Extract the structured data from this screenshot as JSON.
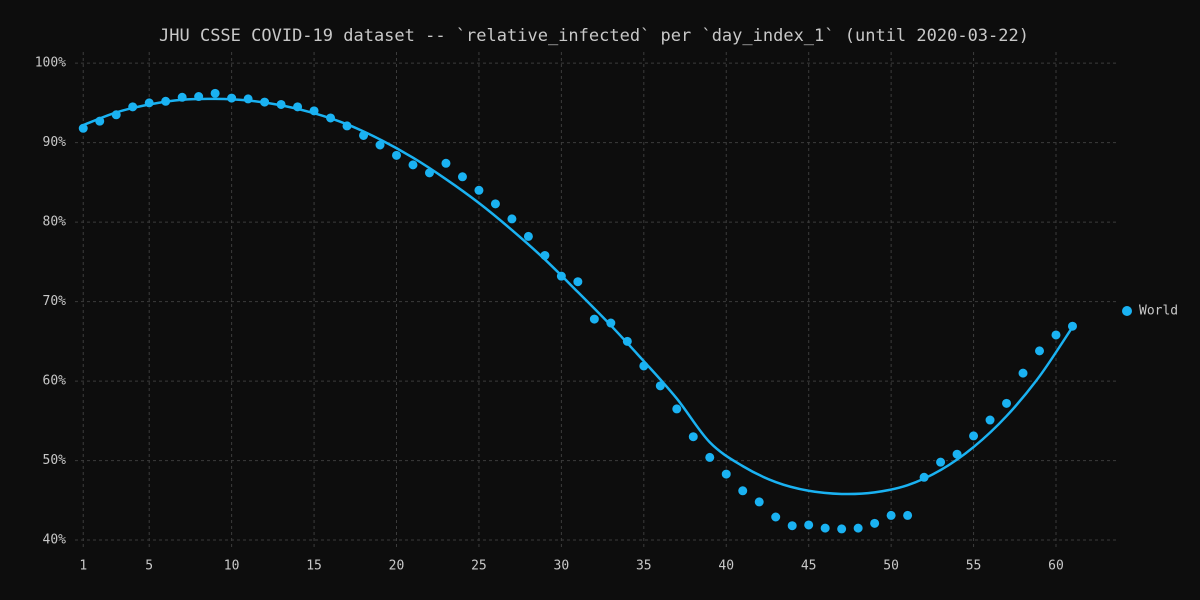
{
  "chart_data": {
    "type": "scatter",
    "title": "JHU CSSE COVID-19 dataset -- `relative_infected` per `day_index_1` (until 2020-03-22)",
    "xlim": [
      0.5,
      63.7
    ],
    "ylim": [
      39,
      101.4
    ],
    "xticks": [
      1,
      5,
      10,
      15,
      20,
      25,
      30,
      35,
      40,
      45,
      50,
      55,
      60
    ],
    "yticks": [
      {
        "value": 40,
        "label": "40%"
      },
      {
        "value": 50,
        "label": "50%"
      },
      {
        "value": 60,
        "label": "60%"
      },
      {
        "value": 70,
        "label": "70%"
      },
      {
        "value": 80,
        "label": "80%"
      },
      {
        "value": 90,
        "label": "90%"
      },
      {
        "value": 100,
        "label": "100%"
      }
    ],
    "grid": true,
    "legend": "right",
    "series": [
      {
        "name": "World",
        "color": "#1ab2f2",
        "x": [
          1,
          2,
          3,
          4,
          5,
          6,
          7,
          8,
          9,
          10,
          11,
          12,
          13,
          14,
          15,
          16,
          17,
          18,
          19,
          20,
          21,
          22,
          23,
          24,
          25,
          26,
          27,
          28,
          29,
          30,
          31,
          32,
          33,
          34,
          35,
          36,
          37,
          38,
          39,
          40,
          41,
          42,
          43,
          44,
          45,
          46,
          47,
          48,
          49,
          50,
          51,
          52,
          53,
          54,
          55,
          56,
          57,
          58,
          59,
          60,
          61
        ],
        "values": [
          91.8,
          92.7,
          93.5,
          94.5,
          95.0,
          95.2,
          95.7,
          95.8,
          96.2,
          95.6,
          95.5,
          95.1,
          94.8,
          94.5,
          94.0,
          93.1,
          92.1,
          90.9,
          89.7,
          88.4,
          87.2,
          86.2,
          87.4,
          85.7,
          84.0,
          82.3,
          80.4,
          78.2,
          75.8,
          73.2,
          72.5,
          67.8,
          67.3,
          65.0,
          61.9,
          59.4,
          56.5,
          53.0,
          50.4,
          48.3,
          46.2,
          44.8,
          42.9,
          41.8,
          41.9,
          41.5,
          41.4,
          41.5,
          42.1,
          43.1,
          43.1,
          47.9,
          49.8,
          50.8,
          53.1,
          55.1,
          57.2,
          61.0,
          63.8,
          65.8,
          66.9
        ]
      },
      {
        "type": "line",
        "color": "#1ab2f2",
        "x": [
          1,
          3,
          5,
          7,
          9,
          11,
          13,
          15,
          17,
          19,
          21,
          23,
          25,
          27,
          29,
          31,
          33,
          35,
          37,
          39,
          41,
          43,
          45,
          47,
          49,
          51,
          53,
          55,
          57,
          59,
          61
        ],
        "values": [
          92.2,
          93.8,
          94.8,
          95.4,
          95.5,
          95.3,
          94.7,
          93.7,
          92.3,
          90.4,
          88.1,
          85.4,
          82.4,
          79.0,
          75.3,
          71.2,
          67.0,
          62.5,
          57.8,
          52.3,
          49.3,
          47.3,
          46.2,
          45.8,
          46.0,
          46.9,
          48.8,
          51.7,
          55.6,
          60.6,
          66.8
        ]
      }
    ]
  }
}
